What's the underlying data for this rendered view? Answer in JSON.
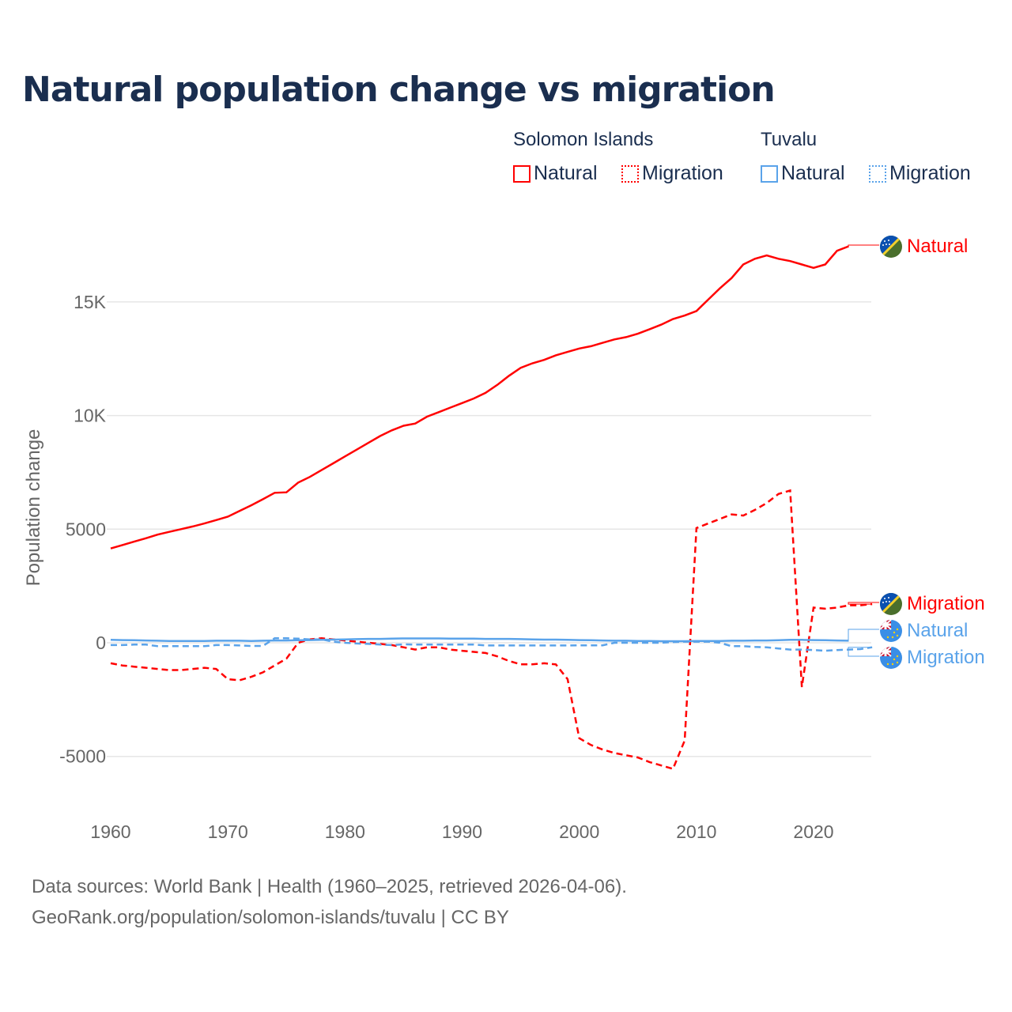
{
  "title": "Natural population change vs migration",
  "legend": {
    "groups": [
      {
        "name": "Solomon Islands",
        "items": [
          {
            "label": "Natural",
            "style": "solid"
          },
          {
            "label": "Migration",
            "style": "dotted"
          }
        ],
        "color": "#ff0000"
      },
      {
        "name": "Tuvalu",
        "items": [
          {
            "label": "Natural",
            "style": "solid"
          },
          {
            "label": "Migration",
            "style": "dotted"
          }
        ],
        "color": "#5aa3ea"
      }
    ]
  },
  "footer": {
    "line1": "Data sources: World Bank | Health (1960–2025, retrieved 2026-04-06).",
    "line2": "GeoRank.org/population/solomon-islands/tuvalu | CC BY"
  },
  "chart_data": {
    "type": "line",
    "title": "Natural population change vs migration",
    "xlabel": "",
    "ylabel": "Population change",
    "xlim": [
      1960,
      2025
    ],
    "ylim": [
      -6500,
      18500
    ],
    "x_ticks": [
      1960,
      1970,
      1980,
      1990,
      2000,
      2010,
      2020
    ],
    "x_tick_labels": [
      "1960",
      "1970",
      "1980",
      "1990",
      "2000",
      "2010",
      "2020"
    ],
    "y_ticks": [
      -5000,
      0,
      5000,
      10000,
      15000
    ],
    "y_tick_labels": [
      "-5000",
      "0",
      "5000",
      "10K",
      "15K"
    ],
    "grid": true,
    "legend_position": "top-right",
    "series": [
      {
        "name": "Solomon Islands Natural",
        "end_label": "Natural",
        "color": "#ff0000",
        "dash": false,
        "start": 1960,
        "values": [
          4150,
          4300,
          4450,
          4600,
          4760,
          4880,
          5000,
          5120,
          5250,
          5400,
          5550,
          5800,
          6050,
          6320,
          6600,
          6620,
          7050,
          7300,
          7600,
          7900,
          8200,
          8500,
          8800,
          9100,
          9350,
          9550,
          9650,
          9950,
          10150,
          10350,
          10550,
          10750,
          11000,
          11350,
          11750,
          12100,
          12300,
          12450,
          12650,
          12800,
          12950,
          13050,
          13200,
          13350,
          13450,
          13600,
          13800,
          14000,
          14250,
          14400,
          14600,
          15100,
          15600,
          16050,
          16650,
          16900,
          17050,
          16900,
          16800,
          16650,
          16500,
          16650,
          17250,
          17450
        ]
      },
      {
        "name": "Solomon Islands Migration",
        "end_label": "Migration",
        "color": "#ff0000",
        "dash": true,
        "start": 1960,
        "values": [
          -900,
          -1000,
          -1050,
          -1100,
          -1150,
          -1200,
          -1200,
          -1150,
          -1100,
          -1150,
          -1600,
          -1650,
          -1500,
          -1300,
          -1000,
          -700,
          0,
          150,
          200,
          150,
          100,
          50,
          0,
          -50,
          -100,
          -200,
          -300,
          -200,
          -200,
          -300,
          -350,
          -400,
          -450,
          -600,
          -800,
          -950,
          -950,
          -900,
          -950,
          -1600,
          -4200,
          -4500,
          -4700,
          -4850,
          -4950,
          -5050,
          -5250,
          -5400,
          -5550,
          -4300,
          5050,
          5250,
          5450,
          5650,
          5600,
          5850,
          6150,
          6550,
          6700,
          -1950,
          1550,
          1500,
          1550,
          1650,
          1650,
          1700
        ]
      },
      {
        "name": "Tuvalu Natural",
        "end_label": "Natural",
        "color": "#5aa3ea",
        "dash": false,
        "start": 1960,
        "values": [
          130,
          120,
          110,
          100,
          90,
          80,
          80,
          80,
          80,
          90,
          90,
          90,
          80,
          90,
          100,
          100,
          110,
          120,
          130,
          140,
          150,
          160,
          170,
          170,
          180,
          190,
          190,
          190,
          190,
          180,
          180,
          180,
          170,
          170,
          170,
          160,
          150,
          140,
          140,
          130,
          120,
          110,
          100,
          90,
          90,
          80,
          80,
          70,
          70,
          70,
          80,
          80,
          80,
          90,
          90,
          100,
          100,
          110,
          130,
          130,
          120,
          110,
          100,
          90
        ]
      },
      {
        "name": "Tuvalu Migration",
        "end_label": "Migration",
        "color": "#5aa3ea",
        "dash": true,
        "start": 1960,
        "values": [
          -100,
          -100,
          -80,
          -80,
          -150,
          -150,
          -150,
          -150,
          -150,
          -100,
          -100,
          -120,
          -140,
          -140,
          200,
          200,
          180,
          150,
          150,
          50,
          0,
          -30,
          -50,
          -80,
          -100,
          -70,
          -80,
          -80,
          -80,
          -80,
          -80,
          -80,
          -120,
          -120,
          -120,
          -120,
          -120,
          -120,
          -120,
          -120,
          -110,
          -110,
          -110,
          0,
          0,
          0,
          0,
          0,
          30,
          50,
          50,
          50,
          0,
          -150,
          -150,
          -180,
          -200,
          -250,
          -300,
          -300,
          -320,
          -350,
          -320,
          -300,
          -280,
          -200
        ]
      }
    ]
  }
}
